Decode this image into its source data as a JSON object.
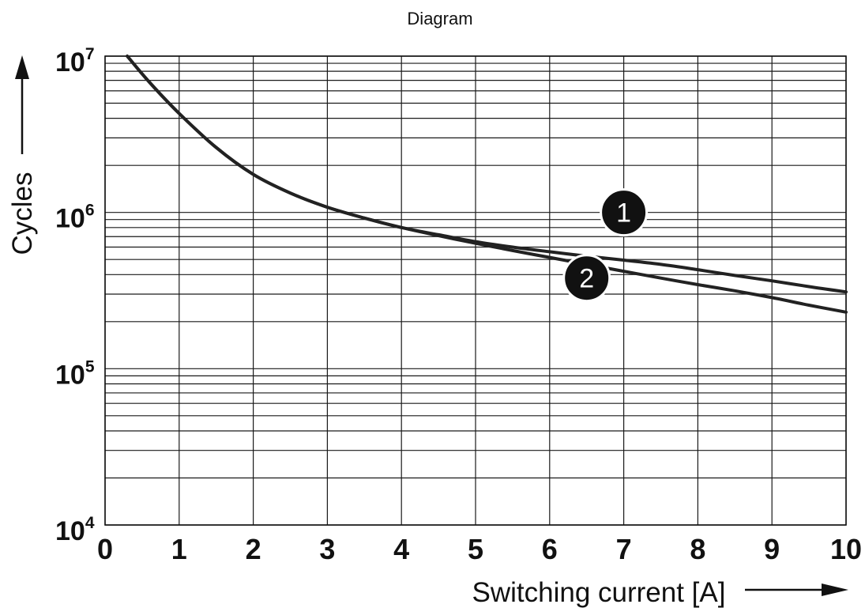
{
  "chart_data": {
    "type": "line",
    "title": "Diagram",
    "xlabel": "Switching current [A]",
    "ylabel": "Cycles",
    "xlim": [
      0,
      10
    ],
    "ylim": [
      10000,
      10000000
    ],
    "y_scale": "log",
    "grid": true,
    "x_ticks": [
      "0",
      "1",
      "2",
      "3",
      "4",
      "5",
      "6",
      "7",
      "8",
      "9",
      "10"
    ],
    "y_ticks": [
      {
        "base": "10",
        "exp": "4",
        "value": 10000
      },
      {
        "base": "10",
        "exp": "5",
        "value": 100000
      },
      {
        "base": "10",
        "exp": "6",
        "value": 1000000
      },
      {
        "base": "10",
        "exp": "7",
        "value": 10000000
      }
    ],
    "series": [
      {
        "name": "1",
        "x": [
          0.3,
          0.6,
          1.0,
          1.5,
          2.0,
          2.5,
          3.0,
          3.5,
          4.0,
          4.5,
          5.0,
          5.5,
          6.0,
          6.5,
          7.0,
          7.5,
          8.0,
          8.5,
          9.0,
          9.5,
          10.0
        ],
        "y": [
          10000000,
          6800000,
          4300000,
          2600000,
          1750000,
          1330000,
          1080000,
          920000,
          800000,
          720000,
          650000,
          600000,
          560000,
          525000,
          495000,
          465000,
          430000,
          395000,
          365000,
          335000,
          310000
        ]
      },
      {
        "name": "2",
        "x": [
          0.3,
          0.6,
          1.0,
          1.5,
          2.0,
          2.5,
          3.0,
          3.5,
          4.0,
          4.5,
          5.0,
          5.5,
          6.0,
          6.5,
          7.0,
          7.5,
          8.0,
          8.5,
          9.0,
          9.5,
          10.0
        ],
        "y": [
          10000000,
          6800000,
          4300000,
          2600000,
          1750000,
          1330000,
          1080000,
          920000,
          800000,
          710000,
          635000,
          570000,
          515000,
          465000,
          420000,
          380000,
          345000,
          315000,
          285000,
          255000,
          230000
        ]
      }
    ],
    "annotations": [
      {
        "label": "1",
        "x": 7.0,
        "y": 1000000
      },
      {
        "label": "2",
        "x": 6.5,
        "y": 380000
      }
    ],
    "colors": {
      "line": "#222222",
      "grid": "#1a1a1a",
      "marker_fill": "#111111",
      "marker_text": "#ffffff"
    }
  }
}
